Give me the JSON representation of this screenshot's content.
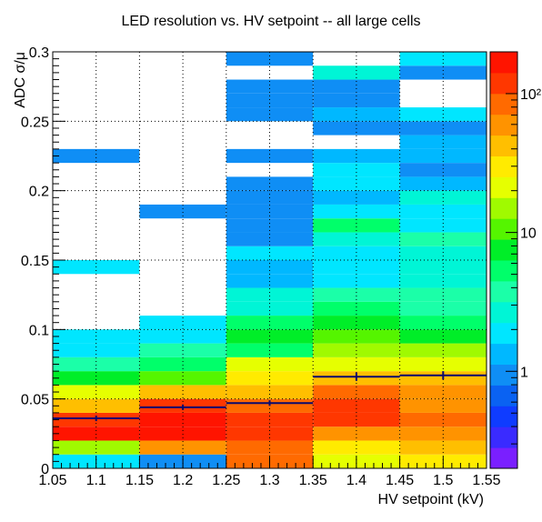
{
  "chart_data": {
    "type": "heatmap",
    "title": "LED resolution vs. HV setpoint -- all large cells",
    "xlabel": "HV setpoint (kV)",
    "ylabel": "ADC σ/μ",
    "xlim": [
      1.05,
      1.55
    ],
    "ylim": [
      0,
      0.3
    ],
    "x_ticks": [
      "1.05",
      "1.1",
      "1.15",
      "1.2",
      "1.25",
      "1.3",
      "1.35",
      "1.4",
      "1.45",
      "1.5",
      "1.55"
    ],
    "y_ticks": [
      "0",
      "0.05",
      "0.1",
      "0.15",
      "0.2",
      "0.25",
      "0.3"
    ],
    "x_bin_edges": [
      1.05,
      1.15,
      1.25,
      1.35,
      1.45,
      1.55
    ],
    "y_bin_width": 0.01,
    "grid": true,
    "colorbar": {
      "scale": "log",
      "range": [
        0.2,
        200
      ],
      "tick_labels": [
        "1",
        "10",
        "10²"
      ],
      "tick_values": [
        1,
        10,
        100
      ],
      "levels": 20
    },
    "cells": [
      {
        "x": 1.1,
        "y_bins": [
          "0-0.01",
          "0.01-0.02",
          "0.02-0.03",
          "0.03-0.04",
          "0.04-0.05",
          "0.05-0.06",
          "0.06-0.07",
          "0.07-0.08",
          "0.08-0.09",
          "0.09-0.10",
          "0.14-0.15",
          "0.22-0.23"
        ],
        "counts": [
          2,
          15,
          150,
          130,
          40,
          20,
          8,
          4,
          1.8,
          1.8,
          1.8,
          0.8
        ]
      },
      {
        "x": 1.2,
        "y_bins": [
          "0-0.01",
          "0.01-0.02",
          "0.02-0.03",
          "0.03-0.04",
          "0.04-0.05",
          "0.05-0.06",
          "0.06-0.07",
          "0.07-0.08",
          "0.08-0.09",
          "0.09-0.10",
          "0.10-0.11",
          "0.18-0.19"
        ],
        "counts": [
          0.8,
          60,
          150,
          160,
          130,
          40,
          10,
          5,
          4,
          2,
          2,
          0.8
        ]
      },
      {
        "x": 1.3,
        "y_bins": [
          "0-0.01",
          "0.01-0.02",
          "0.02-0.03",
          "0.03-0.04",
          "0.04-0.05",
          "0.05-0.06",
          "0.06-0.07",
          "0.07-0.08",
          "0.08-0.09",
          "0.09-0.10",
          "0.10-0.11",
          "0.11-0.12",
          "0.12-0.13",
          "0.13-0.14",
          "0.14-0.15",
          "0.15-0.16",
          "0.16-0.17",
          "0.17-0.18",
          "0.18-0.19",
          "0.19-0.20",
          "0.20-0.21",
          "0.22-0.23",
          "0.25-0.26",
          "0.26-0.27",
          "0.27-0.28",
          "0.29-0.30"
        ],
        "counts": [
          80,
          100,
          120,
          130,
          100,
          40,
          30,
          20,
          6,
          8,
          5,
          3,
          3,
          1.5,
          1.5,
          1.8,
          0.8,
          0.8,
          0.8,
          0.8,
          0.8,
          0.8,
          0.8,
          0.8,
          0.8,
          0.8
        ]
      },
      {
        "x": 1.4,
        "y_bins": [
          "0-0.01",
          "0.01-0.02",
          "0.02-0.03",
          "0.03-0.04",
          "0.04-0.05",
          "0.05-0.06",
          "0.06-0.07",
          "0.07-0.08",
          "0.08-0.09",
          "0.09-0.10",
          "0.10-0.11",
          "0.11-0.12",
          "0.12-0.13",
          "0.13-0.14",
          "0.14-0.15",
          "0.15-0.16",
          "0.16-0.17",
          "0.17-0.18",
          "0.18-0.19",
          "0.19-0.20",
          "0.20-0.21",
          "0.21-0.22",
          "0.22-0.23",
          "0.24-0.25",
          "0.25-0.26",
          "0.26-0.27",
          "0.27-0.28",
          "0.28-0.29"
        ],
        "counts": [
          20,
          30,
          60,
          120,
          110,
          100,
          50,
          25,
          15,
          10,
          8,
          5,
          4,
          2,
          1.8,
          1.8,
          3,
          6,
          2,
          1.5,
          1.8,
          2,
          1.5,
          0.8,
          1.3,
          0.8,
          0.8,
          2.5
        ]
      },
      {
        "x": 1.5,
        "y_bins": [
          "0-0.01",
          "0.01-0.02",
          "0.02-0.03",
          "0.03-0.04",
          "0.04-0.05",
          "0.05-0.06",
          "0.06-0.07",
          "0.07-0.08",
          "0.08-0.09",
          "0.09-0.10",
          "0.10-0.11",
          "0.11-0.12",
          "0.12-0.13",
          "0.13-0.14",
          "0.14-0.15",
          "0.15-0.16",
          "0.16-0.17",
          "0.17-0.18",
          "0.18-0.19",
          "0.19-0.20",
          "0.20-0.21",
          "0.21-0.22",
          "0.22-0.23",
          "0.23-0.24",
          "0.24-0.25",
          "0.25-0.26",
          "0.28-0.29",
          "0.29-0.30"
        ],
        "counts": [
          30,
          50,
          70,
          80,
          70,
          60,
          50,
          25,
          15,
          8,
          5,
          4,
          4,
          3,
          3,
          3,
          4,
          1.8,
          1.8,
          3,
          1.2,
          0.8,
          1.5,
          1.5,
          0.8,
          1.8,
          0.8,
          1.8
        ]
      }
    ],
    "profile": {
      "x": [
        1.1,
        1.2,
        1.3,
        1.4,
        1.5
      ],
      "y": [
        0.036,
        0.044,
        0.047,
        0.066,
        0.067
      ],
      "x_err": [
        0.05,
        0.05,
        0.05,
        0.05,
        0.05
      ],
      "y_err": [
        0.002,
        0.002,
        0.002,
        0.003,
        0.003
      ],
      "color": "#0a0a6e"
    },
    "palette": [
      "#7a1fff",
      "#3a2bff",
      "#0f3cff",
      "#0a62f2",
      "#0f8ef5",
      "#00b8ff",
      "#00e6ff",
      "#00f5d6",
      "#1bffa8",
      "#00ff6a",
      "#00ee28",
      "#55f500",
      "#a0fa00",
      "#e6ff00",
      "#ffeb00",
      "#ffbf00",
      "#ff9300",
      "#ff6a00",
      "#ff3700",
      "#ff1400"
    ]
  }
}
